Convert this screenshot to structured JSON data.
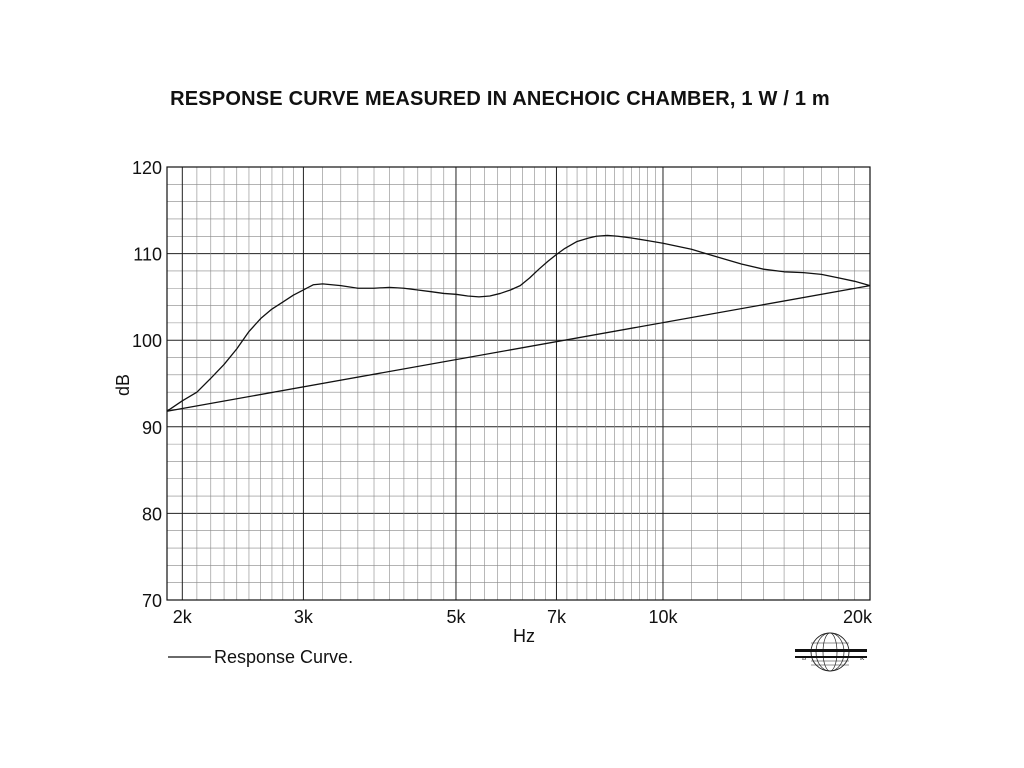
{
  "chart_data": {
    "type": "line",
    "title": "RESPONSE CURVE MEASURED IN ANECHOIC CHAMBER, 1 W / 1 m",
    "xlabel": "Hz",
    "ylabel": "dB",
    "x_scale": "log",
    "xlim": [
      1900,
      20000
    ],
    "ylim": [
      70,
      120
    ],
    "x_ticks": [
      2000,
      3000,
      5000,
      7000,
      10000,
      20000
    ],
    "x_tick_labels": [
      "2k",
      "3k",
      "5k",
      "7k",
      "10k",
      "20k"
    ],
    "y_ticks": [
      70,
      80,
      90,
      100,
      110,
      120
    ],
    "y_tick_labels": [
      "70",
      "80",
      "90",
      "100",
      "110",
      "120"
    ],
    "grid": true,
    "legend_position": "bottom-left",
    "series": [
      {
        "name": "Response Curve.",
        "color": "#111111",
        "x": [
          1900,
          2000,
          2100,
          2200,
          2300,
          2400,
          2500,
          2600,
          2700,
          2800,
          2900,
          3000,
          3100,
          3200,
          3400,
          3600,
          3800,
          4000,
          4200,
          4400,
          4600,
          4800,
          5000,
          5200,
          5400,
          5600,
          5800,
          6000,
          6200,
          6400,
          6600,
          6800,
          7000,
          7200,
          7500,
          7800,
          8000,
          8300,
          8600,
          9000,
          9500,
          10000,
          11000,
          12000,
          13000,
          14000,
          15000,
          16000,
          17000,
          18000,
          19000,
          20000
        ],
        "y": [
          91.8,
          93.0,
          94.0,
          95.6,
          97.2,
          99.0,
          101.0,
          102.5,
          103.6,
          104.4,
          105.2,
          105.8,
          106.4,
          106.5,
          106.3,
          106.0,
          106.0,
          106.1,
          106.0,
          105.8,
          105.6,
          105.4,
          105.3,
          105.1,
          105.0,
          105.1,
          105.4,
          105.8,
          106.3,
          107.2,
          108.2,
          109.1,
          109.9,
          110.6,
          111.4,
          111.8,
          112.0,
          112.1,
          112.0,
          111.8,
          111.5,
          111.2,
          110.5,
          109.6,
          108.8,
          108.2,
          107.9,
          107.8,
          107.6,
          107.2,
          106.8,
          106.3
        ]
      },
      {
        "name": "",
        "color": "#111111",
        "x": [
          1900,
          20000
        ],
        "y": [
          91.8,
          106.3
        ]
      }
    ]
  }
}
